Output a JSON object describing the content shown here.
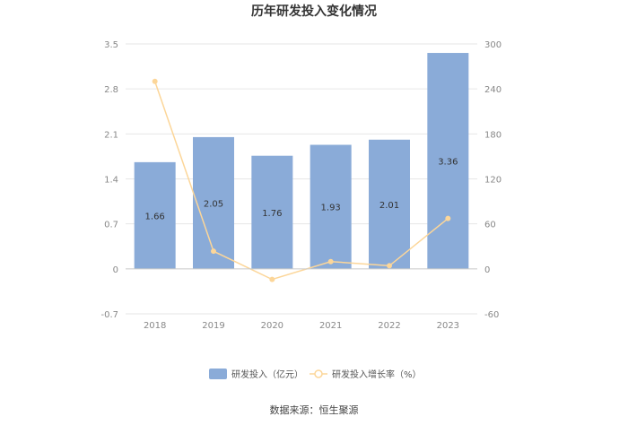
{
  "chart_data": {
    "type": "bar",
    "title": "历年研发投入变化情况",
    "categories": [
      "2018",
      "2019",
      "2020",
      "2021",
      "2022",
      "2023"
    ],
    "series": [
      {
        "name": "研发投入（亿元）",
        "type": "bar",
        "axis": "left",
        "values": [
          1.66,
          2.05,
          1.76,
          1.93,
          2.01,
          3.36
        ],
        "labels": [
          "1.66",
          "2.05",
          "1.76",
          "1.93",
          "2.01",
          "3.36"
        ],
        "color": "#8aabd8"
      },
      {
        "name": "研发投入增长率（%）",
        "type": "line",
        "axis": "right",
        "values": [
          250,
          23.5,
          -14.1,
          9.7,
          4.1,
          67.2
        ],
        "color": "#fcd699"
      }
    ],
    "y_left": {
      "ticks": [
        "3.5",
        "2.8",
        "2.1",
        "1.4",
        "0.7",
        "0",
        "-0.7"
      ],
      "ylim": [
        -0.7,
        3.5
      ]
    },
    "y_right": {
      "ticks": [
        "300",
        "240",
        "180",
        "120",
        "60",
        "0",
        "-60"
      ],
      "ylim": [
        -60,
        300
      ]
    },
    "grid": true,
    "legend_position": "bottom"
  },
  "source_text": "数据来源：恒生聚源"
}
